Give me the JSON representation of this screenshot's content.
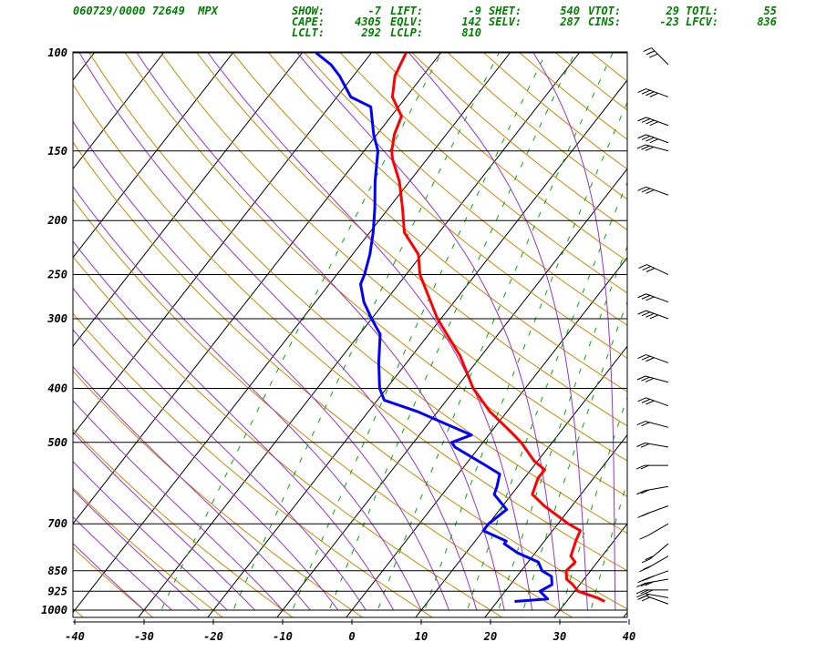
{
  "header": {
    "station_line": "060729/0000 72649  MPX",
    "indices": [
      [
        {
          "label": "SHOW:",
          "value": "-7"
        },
        {
          "label": "LIFT:",
          "value": "-9"
        },
        {
          "label": "SHET:",
          "value": "540"
        },
        {
          "label": "VTOT:",
          "value": "29"
        },
        {
          "label": "TOTL:",
          "value": "55"
        }
      ],
      [
        {
          "label": "CAPE:",
          "value": "4305"
        },
        {
          "label": "EQLV:",
          "value": "142"
        },
        {
          "label": "SELV:",
          "value": "287"
        },
        {
          "label": "CINS:",
          "value": "-23"
        },
        {
          "label": "LFCV:",
          "value": "836"
        }
      ],
      [
        {
          "label": "LCLT:",
          "value": "292"
        },
        {
          "label": "LCLP:",
          "value": "810"
        }
      ]
    ]
  },
  "chart_data": {
    "type": "skew-t log-p sounding",
    "x_ticks": [
      "-40",
      "-30",
      "-20",
      "-10",
      "0",
      "10",
      "20",
      "30",
      "40"
    ],
    "pressure_levels": [
      {
        "p": 100,
        "label": "100"
      },
      {
        "p": 150,
        "label": "150"
      },
      {
        "p": 200,
        "label": "200"
      },
      {
        "p": 250,
        "label": "250"
      },
      {
        "p": 300,
        "label": "300"
      },
      {
        "p": 400,
        "label": "400"
      },
      {
        "p": 500,
        "label": "500"
      },
      {
        "p": 700,
        "label": "700"
      },
      {
        "p": 850,
        "label": "850"
      },
      {
        "p": 925,
        "label": "925"
      },
      {
        "p": 1000,
        "label": "1000"
      }
    ],
    "xlim": [
      -40,
      40
    ],
    "plim": [
      1050,
      100
    ],
    "temperature_series": {
      "color": "#ff0000",
      "points": [
        [
          965,
          35.5
        ],
        [
          950,
          34.0
        ],
        [
          925,
          30.5
        ],
        [
          900,
          29.0
        ],
        [
          880,
          27.5
        ],
        [
          850,
          26.5
        ],
        [
          820,
          26.8
        ],
        [
          800,
          25.5
        ],
        [
          750,
          24.5
        ],
        [
          720,
          24.0
        ],
        [
          700,
          21.5
        ],
        [
          650,
          16.0
        ],
        [
          620,
          13.0
        ],
        [
          600,
          12.5
        ],
        [
          580,
          12.0
        ],
        [
          560,
          12.0
        ],
        [
          540,
          9.5
        ],
        [
          500,
          5.5
        ],
        [
          480,
          3.0
        ],
        [
          440,
          -2.5
        ],
        [
          400,
          -7.5
        ],
        [
          350,
          -13.0
        ],
        [
          300,
          -20.5
        ],
        [
          250,
          -28.0
        ],
        [
          230,
          -30.5
        ],
        [
          210,
          -35.0
        ],
        [
          190,
          -38.0
        ],
        [
          170,
          -41.5
        ],
        [
          155,
          -45.0
        ],
        [
          150,
          -46.0
        ],
        [
          140,
          -47.5
        ],
        [
          130,
          -48.5
        ],
        [
          120,
          -52.0
        ],
        [
          110,
          -54.0
        ],
        [
          100,
          -55.0
        ]
      ]
    },
    "dewpoint_series": {
      "color": "#0000ff",
      "points": [
        [
          965,
          22.5
        ],
        [
          955,
          27.0
        ],
        [
          925,
          25.0
        ],
        [
          900,
          26.0
        ],
        [
          870,
          25.0
        ],
        [
          850,
          23.0
        ],
        [
          820,
          21.5
        ],
        [
          790,
          17.5
        ],
        [
          760,
          14.5
        ],
        [
          752,
          14.5
        ],
        [
          720,
          10.0
        ],
        [
          700,
          10.0
        ],
        [
          660,
          11.0
        ],
        [
          620,
          7.5
        ],
        [
          600,
          7.0
        ],
        [
          570,
          6.0
        ],
        [
          550,
          3.0
        ],
        [
          510,
          -3.5
        ],
        [
          500,
          -4.5
        ],
        [
          485,
          -2.5
        ],
        [
          440,
          -13.0
        ],
        [
          420,
          -19.0
        ],
        [
          400,
          -21.0
        ],
        [
          360,
          -24.0
        ],
        [
          320,
          -27.0
        ],
        [
          300,
          -30.0
        ],
        [
          280,
          -33.0
        ],
        [
          260,
          -35.5
        ],
        [
          250,
          -36.0
        ],
        [
          230,
          -37.5
        ],
        [
          210,
          -39.5
        ],
        [
          190,
          -42.0
        ],
        [
          170,
          -45.0
        ],
        [
          150,
          -48.0
        ],
        [
          140,
          -50.5
        ],
        [
          125,
          -54.0
        ],
        [
          120,
          -58.0
        ],
        [
          110,
          -62.0
        ],
        [
          105,
          -64.5
        ],
        [
          100,
          -68.0
        ]
      ]
    },
    "background_lines": {
      "isotherms_color": "#000000",
      "dry_adiabats_color": "#cc8800",
      "moist_adiabats_color": "#9933cc",
      "mixing_ratio_color": "#00aa00",
      "isobars_color": "#000000"
    },
    "wind_barbs_color": "#000000"
  }
}
